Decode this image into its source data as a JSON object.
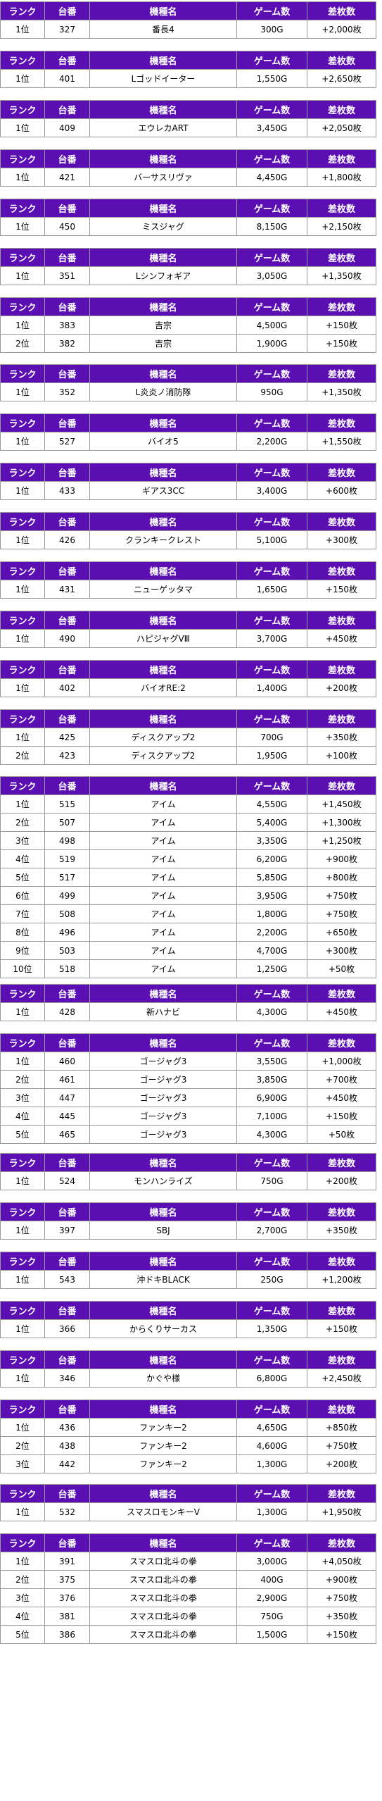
{
  "headers": [
    "ランク",
    "台番",
    "機種名",
    "ゲーム数",
    "差枚数"
  ],
  "colors": {
    "header_bg": "#5b0fb2",
    "header_text": "#ffffff",
    "border": "#9a9a9a"
  },
  "tables": [
    {
      "rows": [
        [
          "1位",
          "327",
          "番長4",
          "300G",
          "+2,000枚"
        ]
      ]
    },
    {
      "rows": [
        [
          "1位",
          "401",
          "Lゴッドイーター",
          "1,550G",
          "+2,650枚"
        ]
      ]
    },
    {
      "rows": [
        [
          "1位",
          "409",
          "エウレカART",
          "3,450G",
          "+2,050枚"
        ]
      ]
    },
    {
      "rows": [
        [
          "1位",
          "421",
          "バーサスリヴァ",
          "4,450G",
          "+1,800枚"
        ]
      ]
    },
    {
      "rows": [
        [
          "1位",
          "450",
          "ミスジャグ",
          "8,150G",
          "+2,150枚"
        ]
      ]
    },
    {
      "rows": [
        [
          "1位",
          "351",
          "Lシンフォギア",
          "3,050G",
          "+1,350枚"
        ]
      ]
    },
    {
      "rows": [
        [
          "1位",
          "383",
          "吉宗",
          "4,500G",
          "+150枚"
        ],
        [
          "2位",
          "382",
          "吉宗",
          "1,900G",
          "+150枚"
        ]
      ]
    },
    {
      "rows": [
        [
          "1位",
          "352",
          "L炎炎ノ消防隊",
          "950G",
          "+1,350枚"
        ]
      ]
    },
    {
      "rows": [
        [
          "1位",
          "527",
          "バイオ5",
          "2,200G",
          "+1,550枚"
        ]
      ]
    },
    {
      "rows": [
        [
          "1位",
          "433",
          "ギアス3CC",
          "3,400G",
          "+600枚"
        ]
      ]
    },
    {
      "rows": [
        [
          "1位",
          "426",
          "クランキークレスト",
          "5,100G",
          "+300枚"
        ]
      ]
    },
    {
      "rows": [
        [
          "1位",
          "431",
          "ニューゲッタマ",
          "1,650G",
          "+150枚"
        ]
      ]
    },
    {
      "rows": [
        [
          "1位",
          "490",
          "ハピジャグVⅢ",
          "3,700G",
          "+450枚"
        ]
      ]
    },
    {
      "rows": [
        [
          "1位",
          "402",
          "バイオRE:2",
          "1,400G",
          "+200枚"
        ]
      ]
    },
    {
      "rows": [
        [
          "1位",
          "425",
          "ディスクアップ2",
          "700G",
          "+350枚"
        ],
        [
          "2位",
          "423",
          "ディスクアップ2",
          "1,950G",
          "+100枚"
        ]
      ]
    },
    {
      "rows": [
        [
          "1位",
          "515",
          "アイム",
          "4,550G",
          "+1,450枚"
        ],
        [
          "2位",
          "507",
          "アイム",
          "5,400G",
          "+1,300枚"
        ],
        [
          "3位",
          "498",
          "アイム",
          "3,350G",
          "+1,250枚"
        ],
        [
          "4位",
          "519",
          "アイム",
          "6,200G",
          "+900枚"
        ],
        [
          "5位",
          "517",
          "アイム",
          "5,850G",
          "+800枚"
        ],
        [
          "6位",
          "499",
          "アイム",
          "3,950G",
          "+750枚"
        ],
        [
          "7位",
          "508",
          "アイム",
          "1,800G",
          "+750枚"
        ],
        [
          "8位",
          "496",
          "アイム",
          "2,200G",
          "+650枚"
        ],
        [
          "9位",
          "503",
          "アイム",
          "4,700G",
          "+300枚"
        ],
        [
          "10位",
          "518",
          "アイム",
          "1,250G",
          "+50枚"
        ]
      ]
    },
    {
      "rows": [
        [
          "1位",
          "428",
          "新ハナビ",
          "4,300G",
          "+450枚"
        ]
      ]
    },
    {
      "rows": [
        [
          "1位",
          "460",
          "ゴージャグ3",
          "3,550G",
          "+1,000枚"
        ],
        [
          "2位",
          "461",
          "ゴージャグ3",
          "3,850G",
          "+700枚"
        ],
        [
          "3位",
          "447",
          "ゴージャグ3",
          "6,900G",
          "+450枚"
        ],
        [
          "4位",
          "445",
          "ゴージャグ3",
          "7,100G",
          "+150枚"
        ],
        [
          "5位",
          "465",
          "ゴージャグ3",
          "4,300G",
          "+50枚"
        ]
      ]
    },
    {
      "rows": [
        [
          "1位",
          "524",
          "モンハンライズ",
          "750G",
          "+200枚"
        ]
      ]
    },
    {
      "rows": [
        [
          "1位",
          "397",
          "SBJ",
          "2,700G",
          "+350枚"
        ]
      ]
    },
    {
      "rows": [
        [
          "1位",
          "543",
          "沖ドキBLACK",
          "250G",
          "+1,200枚"
        ]
      ]
    },
    {
      "rows": [
        [
          "1位",
          "366",
          "からくりサーカス",
          "1,350G",
          "+150枚"
        ]
      ]
    },
    {
      "rows": [
        [
          "1位",
          "346",
          "かぐや様",
          "6,800G",
          "+2,450枚"
        ]
      ]
    },
    {
      "rows": [
        [
          "1位",
          "436",
          "ファンキー2",
          "4,650G",
          "+850枚"
        ],
        [
          "2位",
          "438",
          "ファンキー2",
          "4,600G",
          "+750枚"
        ],
        [
          "3位",
          "442",
          "ファンキー2",
          "1,300G",
          "+200枚"
        ]
      ]
    },
    {
      "rows": [
        [
          "1位",
          "532",
          "スマスロモンキーV",
          "1,300G",
          "+1,950枚"
        ]
      ]
    },
    {
      "rows": [
        [
          "1位",
          "391",
          "スマスロ北斗の拳",
          "3,000G",
          "+4,050枚"
        ],
        [
          "2位",
          "375",
          "スマスロ北斗の拳",
          "400G",
          "+900枚"
        ],
        [
          "3位",
          "376",
          "スマスロ北斗の拳",
          "2,900G",
          "+750枚"
        ],
        [
          "4位",
          "381",
          "スマスロ北斗の拳",
          "750G",
          "+350枚"
        ],
        [
          "5位",
          "386",
          "スマスロ北斗の拳",
          "1,500G",
          "+150枚"
        ]
      ]
    }
  ]
}
